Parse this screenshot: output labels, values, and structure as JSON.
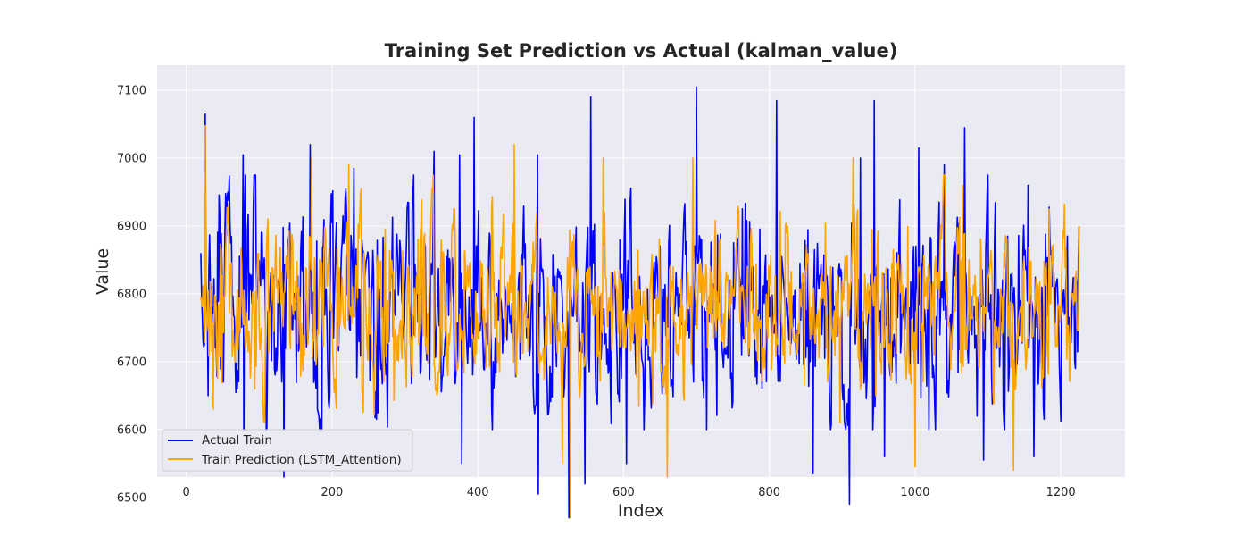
{
  "chart_data": {
    "type": "line",
    "title": "Training Set Prediction vs Actual (kalman_value)",
    "xlabel": "Index",
    "ylabel": "Value",
    "xlim": [
      -40,
      1288
    ],
    "ylim": [
      6530,
      7137
    ],
    "x_start": 20,
    "x_end": 1225,
    "x_ticks": [
      0,
      200,
      400,
      600,
      800,
      1000,
      1200
    ],
    "y_ticks": [
      6500,
      6600,
      6700,
      6800,
      6900,
      7000,
      7100
    ],
    "grid": true,
    "legend_position": "lower-left",
    "series": [
      {
        "name": "Actual Train",
        "color": "#0000ff",
        "noise_mean": 6780,
        "noise_sd": 95,
        "seed": 7,
        "points": [
          [
            20,
            6860
          ],
          [
            26,
            7065
          ],
          [
            30,
            6650
          ],
          [
            78,
            7005
          ],
          [
            79,
            6555
          ],
          [
            110,
            6550
          ],
          [
            134,
            6530
          ],
          [
            170,
            7020
          ],
          [
            230,
            6985
          ],
          [
            340,
            7010
          ],
          [
            375,
            7005
          ],
          [
            378,
            6550
          ],
          [
            395,
            7060
          ],
          [
            482,
            7005
          ],
          [
            483,
            6505
          ],
          [
            525,
            6470
          ],
          [
            547,
            6520
          ],
          [
            555,
            7090
          ],
          [
            604,
            6550
          ],
          [
            700,
            7105
          ],
          [
            714,
            6600
          ],
          [
            810,
            7085
          ],
          [
            860,
            6535
          ],
          [
            910,
            6490
          ],
          [
            925,
            7000
          ],
          [
            944,
            7085
          ],
          [
            958,
            6560
          ],
          [
            1005,
            7015
          ],
          [
            1040,
            6990
          ],
          [
            1068,
            7045
          ],
          [
            1085,
            6620
          ],
          [
            1094,
            6555
          ],
          [
            1155,
            6960
          ],
          [
            1163,
            6560
          ],
          [
            1220,
            6690
          ],
          [
            1225,
            6900
          ]
        ]
      },
      {
        "name": "Train Prediction (LSTM_Attention)",
        "color": "#ffa500",
        "noise_mean": 6780,
        "noise_sd": 80,
        "seed": 19,
        "points": [
          [
            20,
            6795
          ],
          [
            26,
            7048
          ],
          [
            37,
            6630
          ],
          [
            172,
            7000
          ],
          [
            223,
            6990
          ],
          [
            450,
            7020
          ],
          [
            516,
            6550
          ],
          [
            527,
            6470
          ],
          [
            572,
            7000
          ],
          [
            660,
            6530
          ],
          [
            695,
            7000
          ],
          [
            897,
            6610
          ],
          [
            915,
            7000
          ],
          [
            1000,
            6545
          ],
          [
            1065,
            6960
          ],
          [
            1135,
            6540
          ],
          [
            1225,
            6900
          ]
        ]
      }
    ]
  }
}
